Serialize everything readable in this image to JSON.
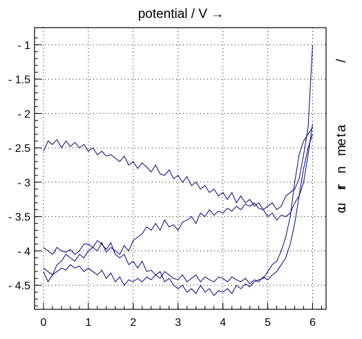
{
  "chart_data": {
    "type": "line",
    "title": "potential  / V →",
    "ylabel_chars": [
      "/",
      "t",
      "n",
      "e",
      "m",
      "a",
      "r",
      "r",
      "u",
      "c"
    ],
    "x_ticks": [
      "0",
      "1",
      "2",
      "3",
      "4",
      "5",
      "6"
    ],
    "y_ticks": [
      "- 1",
      "- 1.5",
      "- 2",
      "- 2.5",
      "- 3",
      "- 3.5",
      "- 4",
      "- 4.5"
    ],
    "xlim": [
      -0.2,
      6.3
    ],
    "ylim": [
      -4.85,
      -0.75
    ],
    "grid": true,
    "line_color": "#000080",
    "series": [
      {
        "x": [
          0,
          0.1,
          0.2,
          0.3,
          0.4,
          0.5,
          0.6,
          0.7,
          0.8,
          0.9,
          1,
          1.1,
          1.2,
          1.3,
          1.4,
          1.5,
          1.6,
          1.7,
          1.8,
          1.9,
          2,
          2.1,
          2.2,
          2.3,
          2.4,
          2.5,
          2.6,
          2.7,
          2.8,
          2.9,
          3,
          3.1,
          3.2,
          3.3,
          3.4,
          3.5,
          3.6,
          3.7,
          3.8,
          3.9,
          4,
          4.1,
          4.2,
          4.3,
          4.4,
          4.5,
          4.6,
          4.7,
          4.8,
          4.9,
          5,
          5.1,
          5.2,
          5.3,
          5.4,
          5.5,
          5.6,
          5.7,
          5.8,
          5.9,
          6
        ],
        "y": [
          -2.55,
          -2.4,
          -2.45,
          -2.38,
          -2.5,
          -2.4,
          -2.48,
          -2.42,
          -2.5,
          -2.45,
          -2.55,
          -2.5,
          -2.6,
          -2.55,
          -2.62,
          -2.6,
          -2.65,
          -2.7,
          -2.62,
          -2.75,
          -2.7,
          -2.8,
          -2.72,
          -2.78,
          -2.85,
          -2.75,
          -2.88,
          -2.9,
          -2.82,
          -2.95,
          -2.9,
          -3,
          -2.92,
          -3.05,
          -3.0,
          -3.1,
          -3.05,
          -3.15,
          -3.1,
          -3.2,
          -3.15,
          -3.25,
          -3.15,
          -3.3,
          -3.2,
          -3.3,
          -3.25,
          -3.35,
          -3.3,
          -3.4,
          -3.35,
          -3.3,
          -3.4,
          -3.35,
          -3.2,
          -3.15,
          -3.1,
          -2.95,
          -2.6,
          -2.2,
          -1.0
        ]
      },
      {
        "x": [
          0,
          0.1,
          0.2,
          0.3,
          0.4,
          0.5,
          0.6,
          0.7,
          0.8,
          0.9,
          1,
          1.1,
          1.2,
          1.3,
          1.4,
          1.5,
          1.6,
          1.7,
          1.8,
          1.9,
          2,
          2.1,
          2.2,
          2.3,
          2.4,
          2.5,
          2.6,
          2.7,
          2.8,
          2.9,
          3,
          3.1,
          3.2,
          3.3,
          3.4,
          3.5,
          3.6,
          3.7,
          3.8,
          3.9,
          4,
          4.1,
          4.2,
          4.3,
          4.4,
          4.5,
          4.6,
          4.7,
          4.8,
          4.9,
          5,
          5.1,
          5.2,
          5.3,
          5.4,
          5.5,
          5.6,
          5.7,
          5.8,
          5.9,
          6
        ],
        "y": [
          -3.95,
          -4.0,
          -4.05,
          -3.95,
          -4.0,
          -4.02,
          -3.98,
          -4.05,
          -4.0,
          -3.9,
          -3.9,
          -3.95,
          -4.0,
          -3.88,
          -4.02,
          -3.95,
          -4.0,
          -4.05,
          -3.92,
          -4.0,
          -3.85,
          -3.8,
          -3.75,
          -3.65,
          -3.7,
          -3.6,
          -3.7,
          -3.55,
          -3.65,
          -3.62,
          -3.7,
          -3.58,
          -3.55,
          -3.5,
          -3.6,
          -3.45,
          -3.5,
          -3.4,
          -3.48,
          -3.42,
          -3.45,
          -3.38,
          -3.42,
          -3.35,
          -3.4,
          -3.32,
          -3.35,
          -3.3,
          -3.38,
          -3.4,
          -3.5,
          -3.45,
          -3.55,
          -3.48,
          -3.5,
          -3.45,
          -3.3,
          -3.2,
          -3.0,
          -2.6,
          -2.15
        ]
      },
      {
        "x": [
          0,
          0.1,
          0.2,
          0.3,
          0.4,
          0.5,
          0.6,
          0.7,
          0.8,
          0.9,
          1,
          1.1,
          1.2,
          1.3,
          1.4,
          1.5,
          1.6,
          1.7,
          1.8,
          1.9,
          2,
          2.1,
          2.2,
          2.3,
          2.4,
          2.5,
          2.6,
          2.7,
          2.8,
          2.9,
          3,
          3.1,
          3.2,
          3.3,
          3.4,
          3.5,
          3.6,
          3.7,
          3.8,
          3.9,
          4,
          4.1,
          4.2,
          4.3,
          4.4,
          4.5,
          4.6,
          4.7,
          4.8,
          4.9,
          5,
          5.1,
          5.2,
          5.3,
          5.4,
          5.5,
          5.6,
          5.7,
          5.8,
          5.9,
          6
        ],
        "y": [
          -4.25,
          -4.3,
          -4.35,
          -4.2,
          -4.15,
          -4.05,
          -4.1,
          -4.15,
          -4.05,
          -4.1,
          -4.0,
          -3.95,
          -3.85,
          -3.9,
          -3.98,
          -3.88,
          -4.05,
          -4.1,
          -4.05,
          -4.2,
          -4.15,
          -4.25,
          -4.15,
          -4.3,
          -4.28,
          -4.35,
          -4.3,
          -4.45,
          -4.4,
          -4.5,
          -4.55,
          -4.5,
          -4.6,
          -4.55,
          -4.62,
          -4.5,
          -4.6,
          -4.55,
          -4.65,
          -4.58,
          -4.6,
          -4.55,
          -4.62,
          -4.5,
          -4.55,
          -4.48,
          -4.52,
          -4.45,
          -4.42,
          -4.4,
          -4.3,
          -4.2,
          -4.15,
          -4.0,
          -3.8,
          -3.5,
          -3.0,
          -2.6,
          -2.4,
          -2.3,
          -2.2
        ]
      },
      {
        "x": [
          0,
          0.1,
          0.2,
          0.3,
          0.4,
          0.5,
          0.6,
          0.7,
          0.8,
          0.9,
          1,
          1.1,
          1.2,
          1.3,
          1.4,
          1.5,
          1.6,
          1.7,
          1.8,
          1.9,
          2,
          2.1,
          2.2,
          2.3,
          2.4,
          2.5,
          2.6,
          2.7,
          2.8,
          2.9,
          3,
          3.1,
          3.2,
          3.3,
          3.4,
          3.5,
          3.6,
          3.7,
          3.8,
          3.9,
          4,
          4.1,
          4.2,
          4.3,
          4.4,
          4.5,
          4.6,
          4.7,
          4.8,
          4.9,
          5,
          5.1,
          5.2,
          5.3,
          5.4,
          5.5,
          5.6,
          5.7,
          5.8,
          5.9,
          6
        ],
        "y": [
          -4.3,
          -4.45,
          -4.35,
          -4.3,
          -4.25,
          -4.28,
          -4.2,
          -4.25,
          -4.22,
          -4.3,
          -4.25,
          -4.3,
          -4.35,
          -4.28,
          -4.4,
          -4.32,
          -4.45,
          -4.38,
          -4.5,
          -4.42,
          -4.45,
          -4.4,
          -4.45,
          -4.38,
          -4.42,
          -4.35,
          -4.4,
          -4.3,
          -4.35,
          -4.4,
          -4.42,
          -4.35,
          -4.45,
          -4.4,
          -4.35,
          -4.45,
          -4.38,
          -4.42,
          -4.45,
          -4.38,
          -4.4,
          -4.45,
          -4.38,
          -4.42,
          -4.45,
          -4.4,
          -4.48,
          -4.42,
          -4.45,
          -4.38,
          -4.42,
          -4.35,
          -4.3,
          -4.2,
          -4.1,
          -3.9,
          -3.6,
          -3.2,
          -2.8,
          -2.5,
          -2.3
        ]
      }
    ]
  }
}
